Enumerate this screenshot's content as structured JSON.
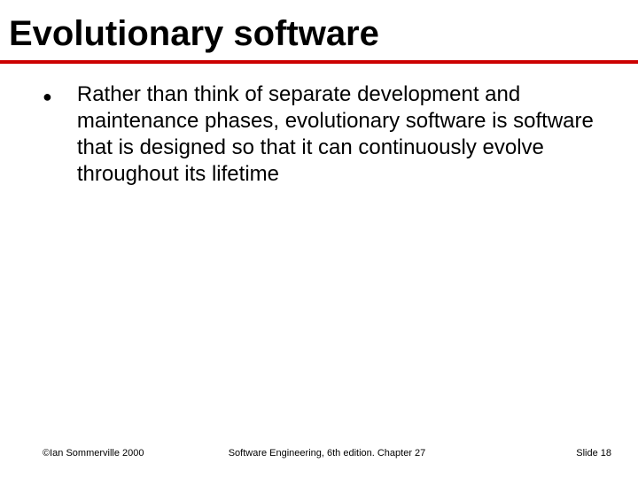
{
  "title": "Evolutionary software",
  "title_fontsize": 40,
  "title_color": "#000000",
  "rule_color": "#cc0000",
  "rule_thickness": 4,
  "background_color": "#ffffff",
  "body": {
    "bullets": [
      {
        "text": "Rather than think of separate development and maintenance phases, evolutionary software is software that is designed so that it can continuously evolve throughout its lifetime"
      }
    ],
    "fontsize": 24,
    "text_color": "#000000",
    "bullet_glyph": "●"
  },
  "footer": {
    "left": "©Ian Sommerville 2000",
    "center": "Software Engineering, 6th edition. Chapter 27",
    "right": "Slide 18",
    "fontsize": 11,
    "color": "#000000"
  }
}
